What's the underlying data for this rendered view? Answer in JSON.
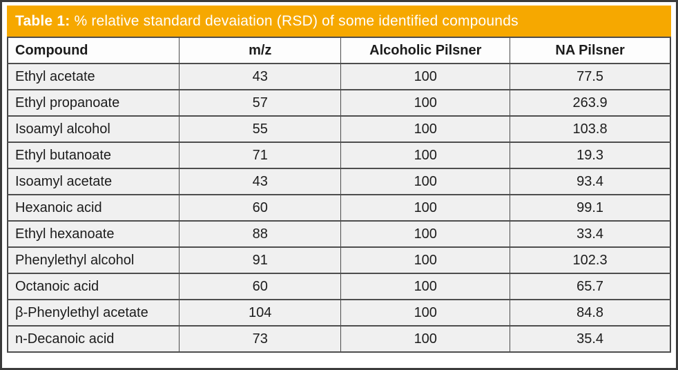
{
  "caption": {
    "label": "Table 1:",
    "text": " % relative standard devaiation (RSD) of some identified compounds"
  },
  "columns": {
    "compound": "Compound",
    "mz": "m/z",
    "alcoholic_pilsner": "Alcoholic Pilsner",
    "na_pilsner": "NA Pilsner"
  },
  "chart_data": {
    "type": "table",
    "title": "Table 1: % relative standard devaiation (RSD) of some identified compounds",
    "columns": [
      "Compound",
      "m/z",
      "Alcoholic Pilsner",
      "NA Pilsner"
    ],
    "rows": [
      [
        "Ethyl acetate",
        "43",
        "100",
        "77.5"
      ],
      [
        "Ethyl propanoate",
        "57",
        "100",
        "263.9"
      ],
      [
        "Isoamyl alcohol",
        "55",
        "100",
        "103.8"
      ],
      [
        "Ethyl butanoate",
        "71",
        "100",
        "19.3"
      ],
      [
        "Isoamyl acetate",
        "43",
        "100",
        "93.4"
      ],
      [
        "Hexanoic acid",
        "60",
        "100",
        "99.1"
      ],
      [
        "Ethyl hexanoate",
        "88",
        "100",
        "33.4"
      ],
      [
        "Phenylethyl alcohol",
        "91",
        "100",
        "102.3"
      ],
      [
        "Octanoic acid",
        "60",
        "100",
        "65.7"
      ],
      [
        "β-Phenylethyl acetate",
        "104",
        "100",
        "84.8"
      ],
      [
        "n-Decanoic acid",
        "73",
        "100",
        "35.4"
      ]
    ]
  },
  "colors": {
    "title_bar_background": "#f6a800",
    "title_text": "#ffffff",
    "row_background": "#f0f0f0",
    "header_row_background": "#fdfdfd",
    "border": "#4a4a4a",
    "text": "#1c1c1c"
  }
}
